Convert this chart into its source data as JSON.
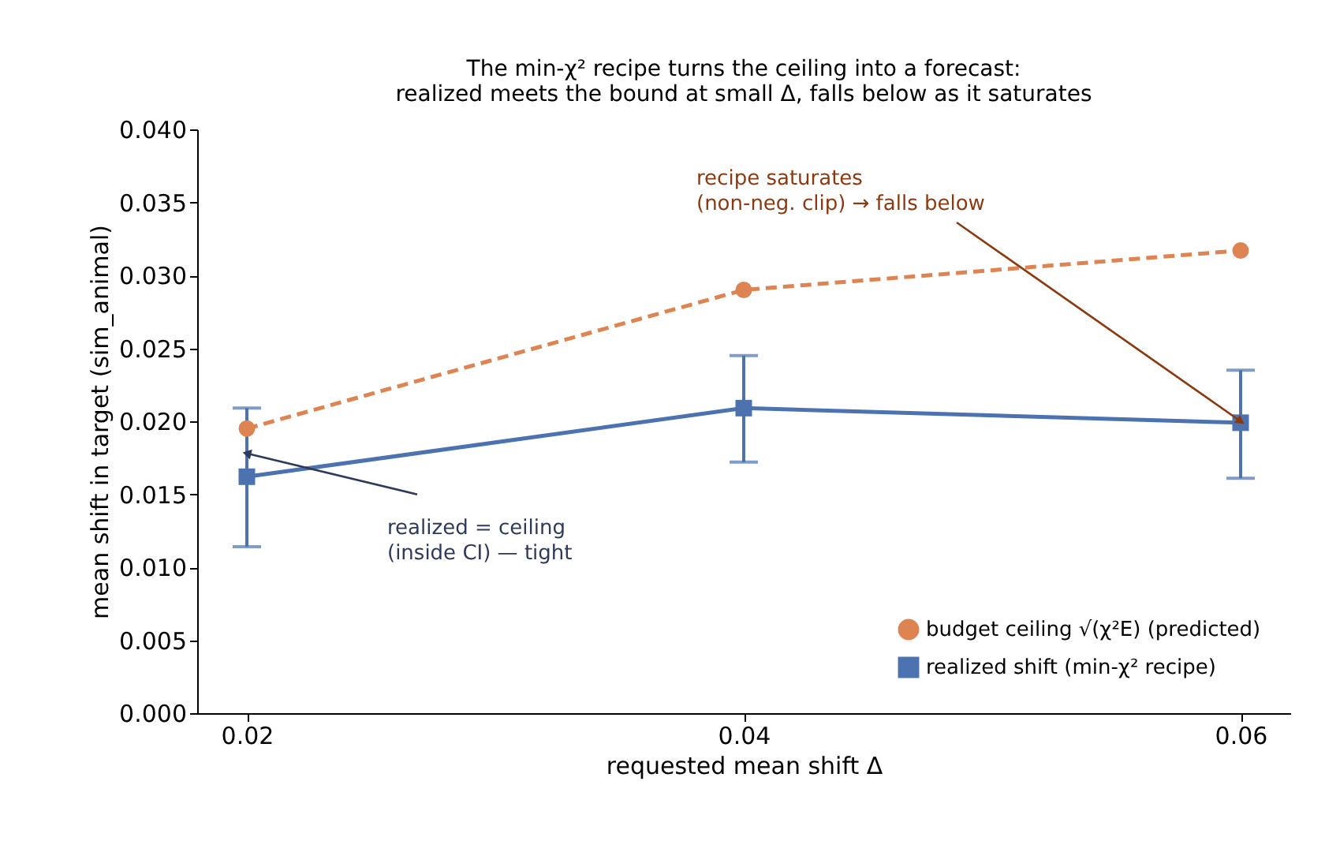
{
  "chart_data": {
    "type": "line",
    "title": "The min-χ² recipe turns the ceiling into a forecast:\nrealized meets the bound at small Δ, falls below as it saturates",
    "xlabel": "requested mean shift  Δ",
    "ylabel": "mean shift in target (sim_animal)",
    "x": [
      0.02,
      0.04,
      0.06
    ],
    "series": [
      {
        "name": "budget ceiling √(χ²E) (predicted)",
        "color": "#dd8452",
        "values": [
          0.0195,
          0.029,
          0.0317
        ],
        "marker": "circle",
        "line_style": "dashed"
      },
      {
        "name": "realized shift (min-χ² recipe)",
        "color": "#4c72b0",
        "values": [
          0.0162,
          0.0209,
          0.0199
        ],
        "marker": "square",
        "line_style": "solid",
        "errors": [
          [
            0.0114,
            0.0209
          ],
          [
            0.0172,
            0.0245
          ],
          [
            0.0161,
            0.0235
          ]
        ]
      }
    ],
    "xlim": [
      0.018,
      0.062
    ],
    "xticks": [
      0.02,
      0.04,
      0.06
    ],
    "ylim": [
      0,
      0.04
    ],
    "yticks": [
      {
        "value": 0,
        "label": "0.000"
      },
      0.005,
      {
        "value": 0.01,
        "label": "0.010"
      },
      0.015,
      {
        "value": 0.02,
        "label": "0.020"
      },
      0.025,
      {
        "value": 0.03,
        "label": "0.030"
      },
      0.035,
      {
        "value": 0.04,
        "label": "0.040"
      }
    ],
    "annotations": [
      {
        "text": "recipe saturates\n(non-neg. clip) → falls below",
        "x": 0.06,
        "y": 0.02
      },
      {
        "text": "realized = ceiling\n(inside CI) — tight",
        "x": 0.02,
        "y": 0.0178
      }
    ],
    "grid": false,
    "legend": "bottom right"
  }
}
